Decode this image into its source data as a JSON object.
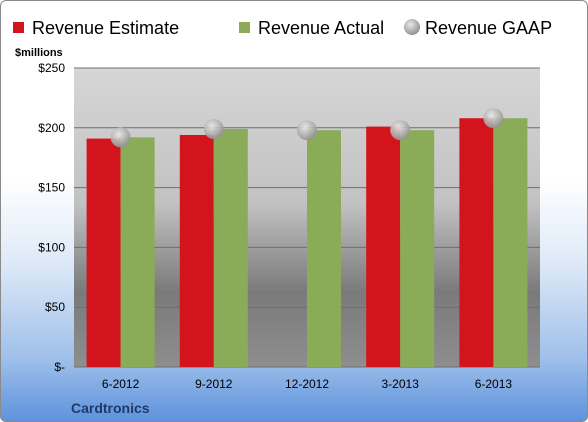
{
  "chart_data": {
    "type": "bar",
    "unit_label": "$millions",
    "categories": [
      "6-2012",
      "9-2012",
      "12-2012",
      "3-2013",
      "6-2013"
    ],
    "series": [
      {
        "name": "Revenue Estimate",
        "kind": "bar",
        "color": "#d4141c",
        "values": [
          191,
          194,
          null,
          201,
          208
        ]
      },
      {
        "name": "Revenue Actual",
        "kind": "bar",
        "color": "#8aac58",
        "values": [
          192,
          199,
          198,
          198,
          208
        ]
      },
      {
        "name": "Revenue GAAP",
        "kind": "marker",
        "color": "#b8b8b8",
        "values": [
          192,
          199,
          198,
          198,
          208
        ]
      }
    ],
    "ylim": [
      0,
      250
    ],
    "yticks": [
      0,
      50,
      100,
      150,
      200,
      250
    ],
    "ytick_labels": [
      "$-",
      "$50",
      "$100",
      "$150",
      "$200",
      "$250"
    ],
    "grid": true,
    "legend_position": "top"
  },
  "footer": {
    "company": "Cardtronics"
  }
}
